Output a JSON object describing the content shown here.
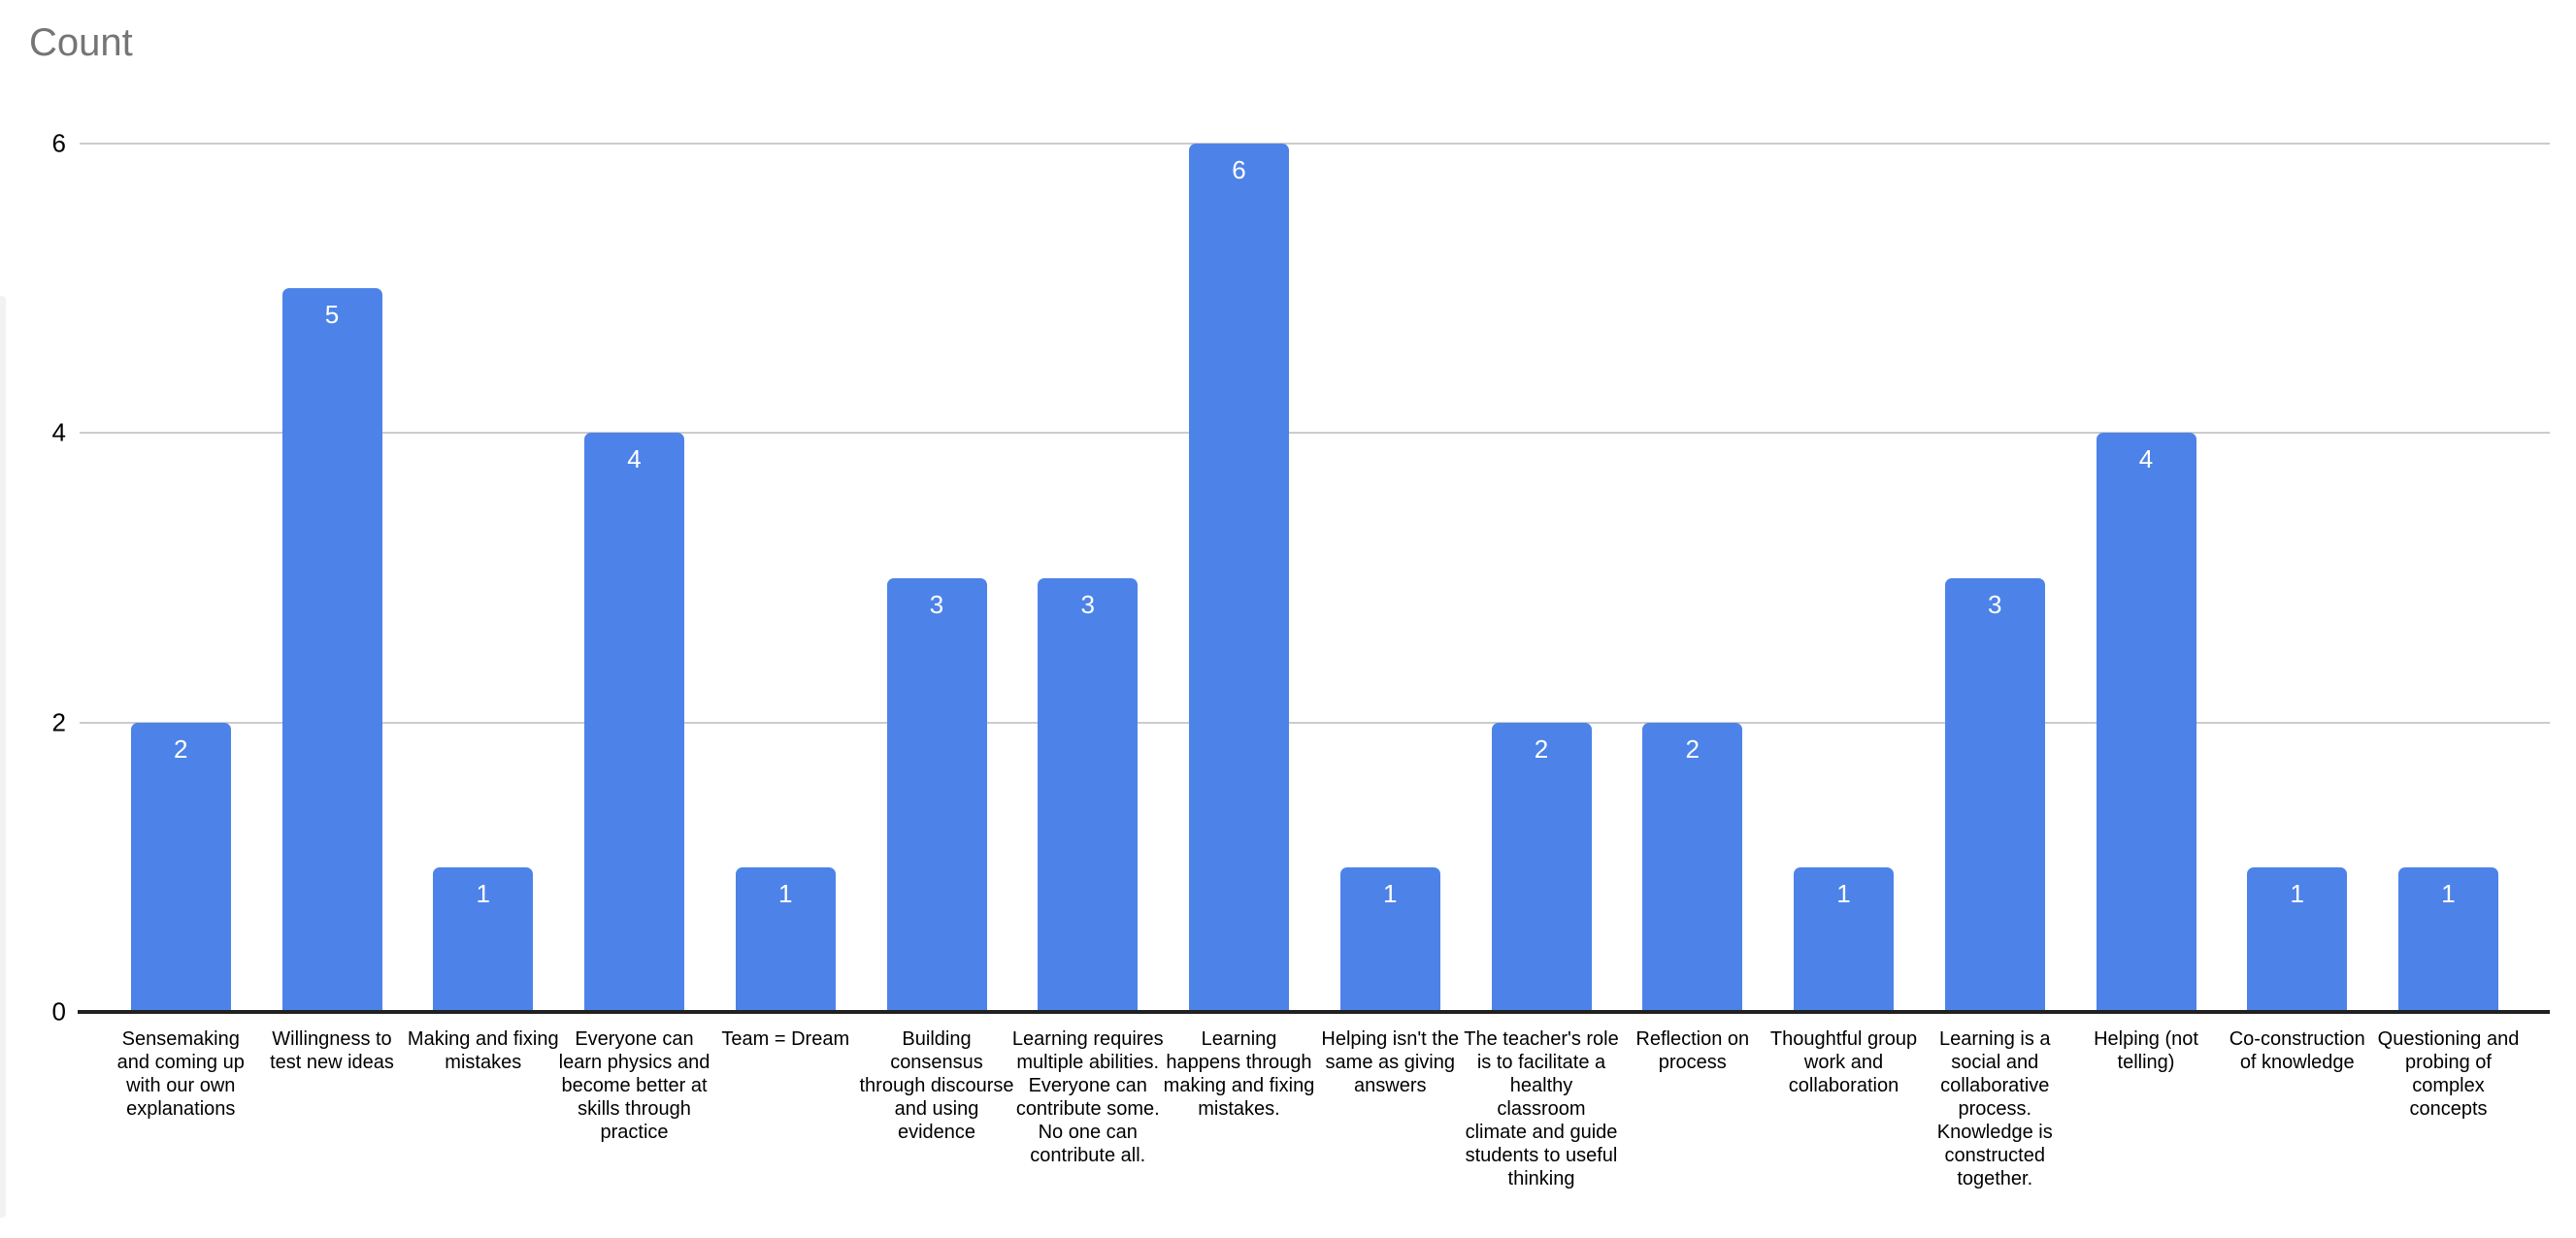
{
  "chart_data": {
    "type": "bar",
    "title": "Count",
    "categories": [
      "Sensemaking and coming up with our own explanations",
      "Willingness to test new ideas",
      "Making and fixing mistakes",
      "Everyone can learn physics and become better at skills through practice",
      "Team = Dream",
      "Building consensus through discourse and using evidence",
      "Learning requires multiple abilities. Everyone can contribute some. No one can contribute all.",
      "Learning happens through making and fixing mistakes.",
      "Helping isn't the same as giving answers",
      "The teacher's role is to facilitate a healthy classroom climate and guide students to useful thinking",
      "Reflection on process",
      "Thoughtful group work and collaboration",
      "Learning is a social and collaborative process. Knowledge is constructed together.",
      "Helping (not telling)",
      "Co-construction of knowledge",
      "Questioning and probing of complex concepts"
    ],
    "values": [
      2,
      5,
      1,
      4,
      1,
      3,
      3,
      6,
      1,
      2,
      2,
      1,
      3,
      4,
      1,
      1
    ],
    "value_labels": [
      "2",
      "5",
      "1",
      "4",
      "1",
      "3",
      "3",
      "6",
      "1",
      "2",
      "2",
      "1",
      "3",
      "4",
      "1",
      "1"
    ],
    "xlabel": "",
    "ylabel": "",
    "ylim": [
      0,
      6
    ],
    "yticks": [
      0,
      2,
      4,
      6
    ],
    "grid": true,
    "legend_position": "none",
    "colors": {
      "bar": "#4d83e8",
      "value_label": "#ffffff",
      "gridline": "#cccccc",
      "baseline": "#212121",
      "title": "#757575",
      "axis_text": "#000000",
      "background": "#ffffff"
    }
  }
}
